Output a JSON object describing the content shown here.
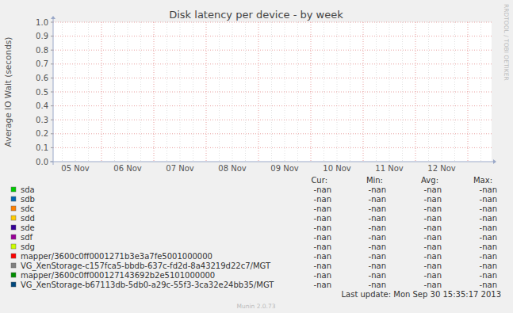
{
  "chart_data": {
    "type": "line",
    "title": "Disk latency per device - by week",
    "y_label": "Average IO Wait (seconds)",
    "watermark": "RRDTOOL / TOBI OETIKER",
    "last_update": "Last update: Mon Sep 30 15:35:17 2013",
    "footer": "Munin 2.0.73",
    "categories": [
      "05 Nov",
      "06 Nov",
      "07 Nov",
      "08 Nov",
      "09 Nov",
      "10 Nov",
      "11 Nov",
      "12 Nov"
    ],
    "ylim": [
      0,
      1
    ],
    "yticks": [
      {
        "value": 0,
        "label": "0.0"
      },
      0.1,
      0.2,
      0.3,
      0.4,
      0.5,
      0.6,
      0.7,
      0.8,
      0.9,
      {
        "value": 1,
        "label": "1.0"
      }
    ],
    "grid": true,
    "legend_columns": [
      "Cur:",
      "Min:",
      "Avg:",
      "Max:"
    ],
    "series": [
      {
        "name": "sda",
        "color": "#00cc00",
        "values": [
          null,
          null,
          null,
          null,
          null,
          null,
          null,
          null
        ],
        "stats": [
          "-nan",
          "-nan",
          "-nan",
          "-nan"
        ]
      },
      {
        "name": "sdb",
        "color": "#0066b3",
        "values": [
          null,
          null,
          null,
          null,
          null,
          null,
          null,
          null
        ],
        "stats": [
          "-nan",
          "-nan",
          "-nan",
          "-nan"
        ]
      },
      {
        "name": "sdc",
        "color": "#ff8000",
        "values": [
          null,
          null,
          null,
          null,
          null,
          null,
          null,
          null
        ],
        "stats": [
          "-nan",
          "-nan",
          "-nan",
          "-nan"
        ]
      },
      {
        "name": "sdd",
        "color": "#ffcc00",
        "values": [
          null,
          null,
          null,
          null,
          null,
          null,
          null,
          null
        ],
        "stats": [
          "-nan",
          "-nan",
          "-nan",
          "-nan"
        ]
      },
      {
        "name": "sde",
        "color": "#330099",
        "values": [
          null,
          null,
          null,
          null,
          null,
          null,
          null,
          null
        ],
        "stats": [
          "-nan",
          "-nan",
          "-nan",
          "-nan"
        ]
      },
      {
        "name": "sdf",
        "color": "#990099",
        "values": [
          null,
          null,
          null,
          null,
          null,
          null,
          null,
          null
        ],
        "stats": [
          "-nan",
          "-nan",
          "-nan",
          "-nan"
        ]
      },
      {
        "name": "sdg",
        "color": "#ccff00",
        "values": [
          null,
          null,
          null,
          null,
          null,
          null,
          null,
          null
        ],
        "stats": [
          "-nan",
          "-nan",
          "-nan",
          "-nan"
        ]
      },
      {
        "name": "mapper/3600c0ff0001271b3e3a7fe5001000000",
        "color": "#ff0000",
        "values": [
          null,
          null,
          null,
          null,
          null,
          null,
          null,
          null
        ],
        "stats": [
          "-nan",
          "-nan",
          "-nan",
          "-nan"
        ]
      },
      {
        "name": "VG_XenStorage-c157fca5-bbdb-637c-fd2d-8a43219d22c7/MGT",
        "color": "#808080",
        "values": [
          null,
          null,
          null,
          null,
          null,
          null,
          null,
          null
        ],
        "stats": [
          "-nan",
          "-nan",
          "-nan",
          "-nan"
        ]
      },
      {
        "name": "mapper/3600c0ff000127143692b2e5101000000",
        "color": "#008f00",
        "values": [
          null,
          null,
          null,
          null,
          null,
          null,
          null,
          null
        ],
        "stats": [
          "-nan",
          "-nan",
          "-nan",
          "-nan"
        ]
      },
      {
        "name": "VG_XenStorage-b67113db-5db0-a29c-55f3-3ca32e24bb35/MGT",
        "color": "#00487d",
        "values": [
          null,
          null,
          null,
          null,
          null,
          null,
          null,
          null
        ],
        "stats": [
          "-nan",
          "-nan",
          "-nan",
          "-nan"
        ]
      }
    ]
  }
}
